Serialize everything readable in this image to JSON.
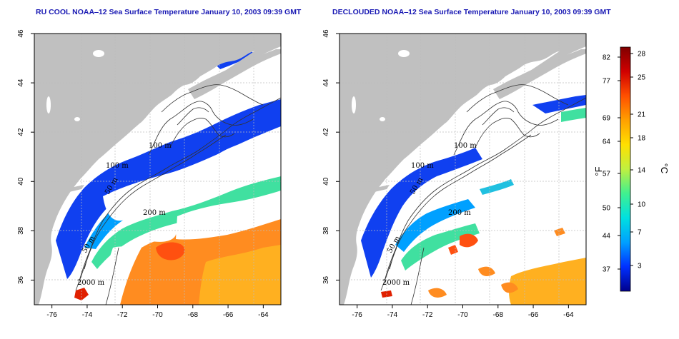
{
  "panels": [
    {
      "title": "RU COOL NOAA‒12 Sea Surface Temperature January 10, 2003 09:39 GMT",
      "kind": "raw"
    },
    {
      "title": "DECLOUDED NOAA‒12 Sea Surface Temperature January 10, 2003 09:39 GMT",
      "kind": "declouded"
    }
  ],
  "axes": {
    "lon_ticks": [
      "-76",
      "-74",
      "-72",
      "-70",
      "-68",
      "-66",
      "-64"
    ],
    "lat_ticks": [
      "36",
      "38",
      "40",
      "42",
      "44",
      "46"
    ],
    "lon_range": [
      -77,
      -63
    ],
    "lat_range": [
      35,
      46
    ]
  },
  "contours": {
    "labels": [
      "100 m",
      "100 m",
      "50 m",
      "200 m",
      "50 m",
      "2000 m"
    ]
  },
  "colorbar": {
    "fahrenheit_unit": "°F",
    "celsius_unit": "°C",
    "fahrenheit_ticks": [
      "82",
      "77",
      "69",
      "64",
      "57",
      "50",
      "44",
      "37"
    ],
    "celsius_ticks": [
      "28",
      "25",
      "21",
      "18",
      "14",
      "10",
      "7",
      "3"
    ],
    "colors": [
      "#00008c",
      "#0030ff",
      "#00a0ff",
      "#00e0e0",
      "#40f090",
      "#c0f040",
      "#ffe000",
      "#ffa000",
      "#ff5000",
      "#d00000",
      "#800000"
    ]
  },
  "colors": {
    "land": "#c0c0c0",
    "title": "#1a1ab4",
    "cloud": "#ffffff"
  }
}
